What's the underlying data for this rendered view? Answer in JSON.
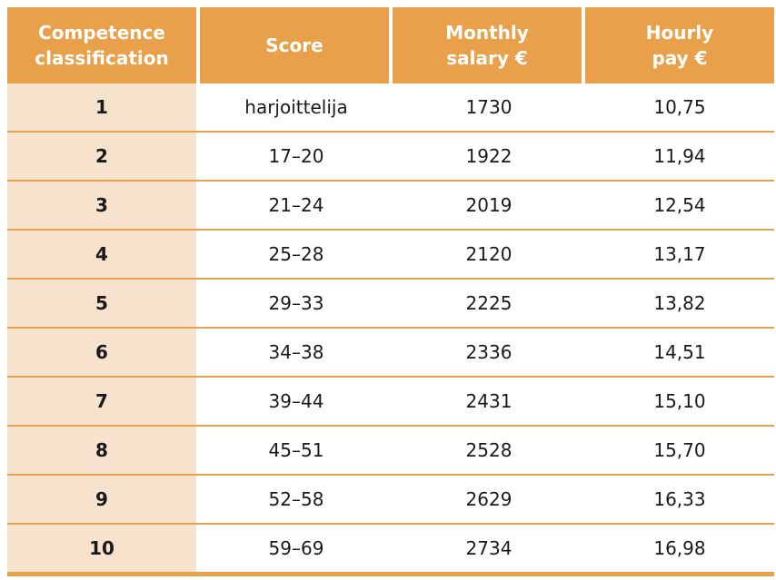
{
  "table": {
    "header": [
      "Competence classification",
      "Score",
      "Monthly salary €",
      "Hourly pay €"
    ],
    "rows": [
      [
        "1",
        "harjoittelija",
        "1730",
        "10,75"
      ],
      [
        "2",
        "17–20",
        "1922",
        "11,94"
      ],
      [
        "3",
        "21–24",
        "2019",
        "12,54"
      ],
      [
        "4",
        "25–28",
        "2120",
        "13,17"
      ],
      [
        "5",
        "29–33",
        "2225",
        "13,82"
      ],
      [
        "6",
        "34–38",
        "2336",
        "14,51"
      ],
      [
        "7",
        "39–44",
        "2431",
        "15,10"
      ],
      [
        "8",
        "45–51",
        "2528",
        "15,70"
      ],
      [
        "9",
        "52–58",
        "2629",
        "16,33"
      ],
      [
        "10",
        "59–69",
        "2734",
        "16,98"
      ]
    ]
  }
}
